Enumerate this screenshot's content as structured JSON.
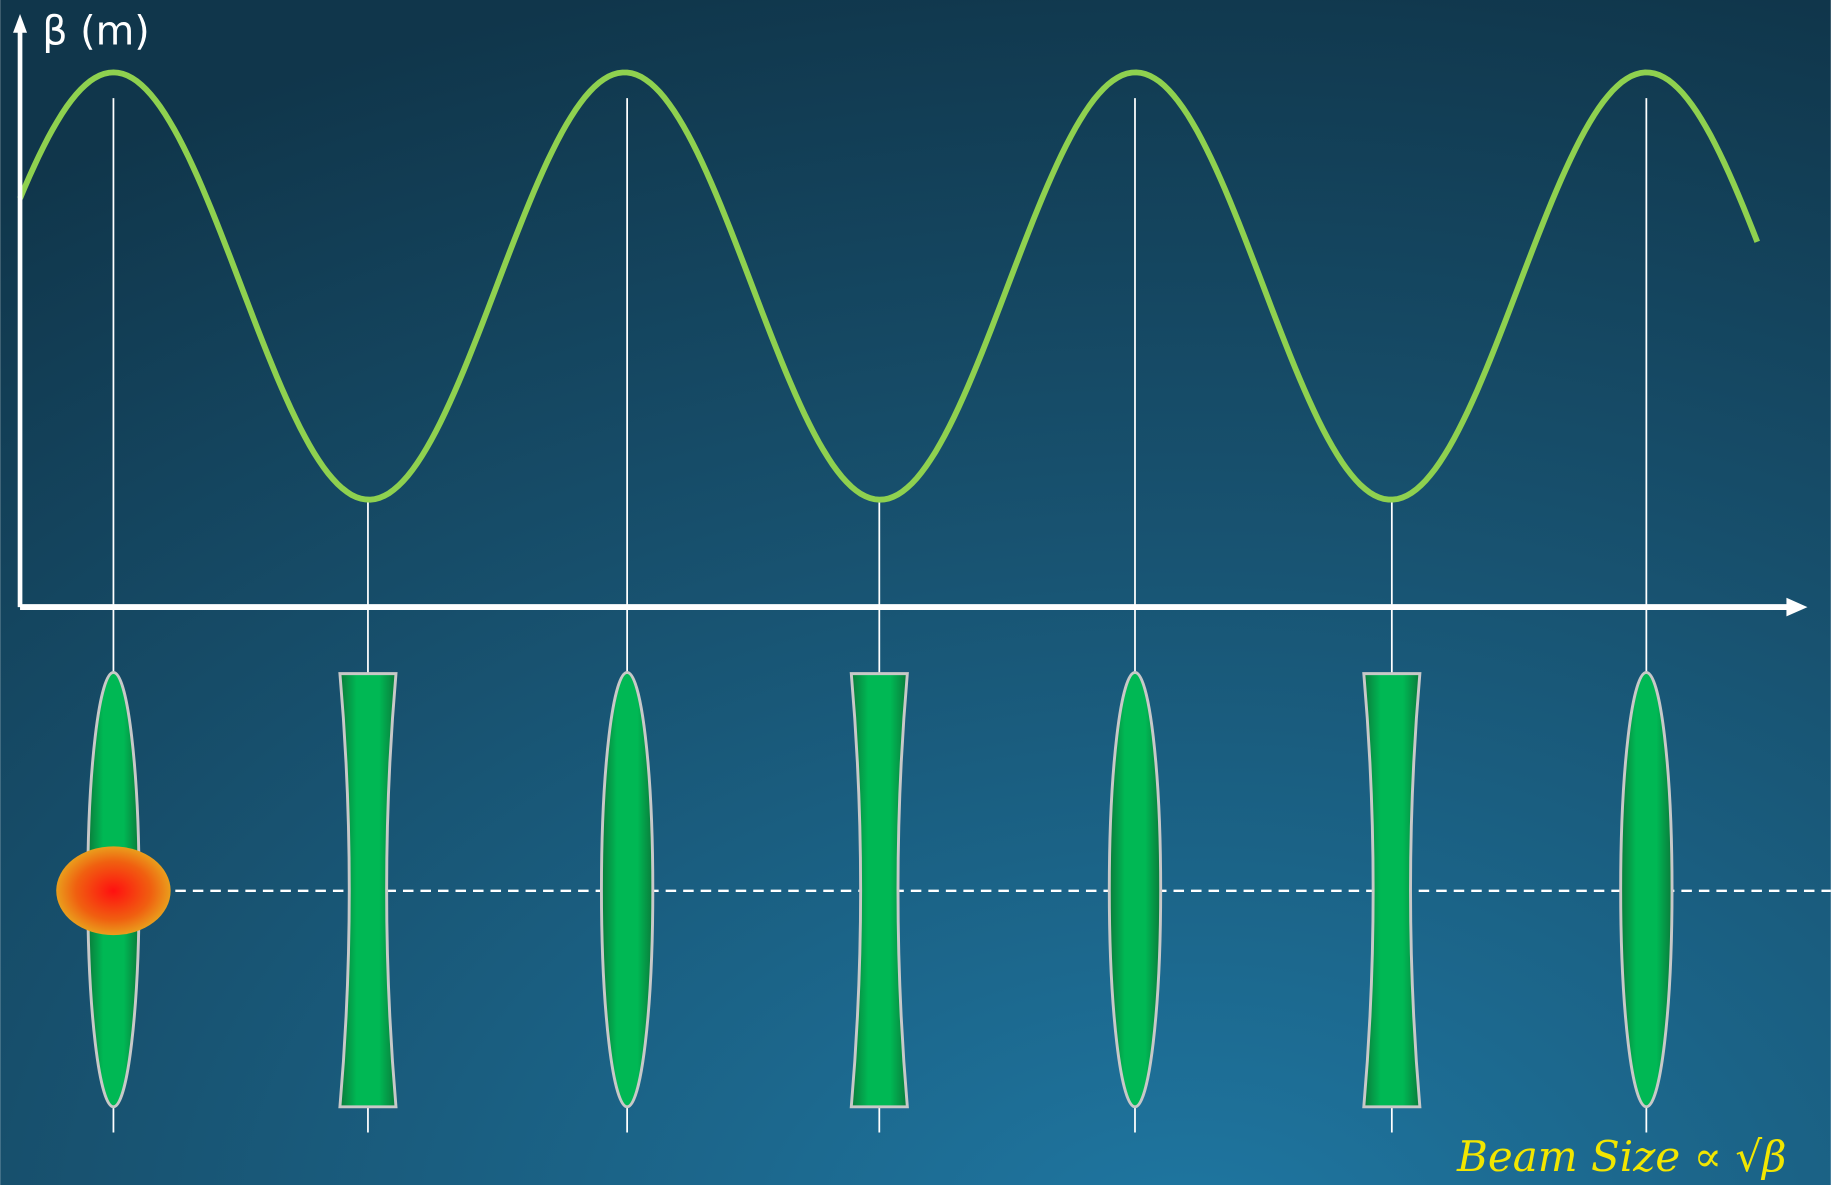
{
  "axis_label": "β (m)",
  "formula": "Beam Size ∝ √β"
}
